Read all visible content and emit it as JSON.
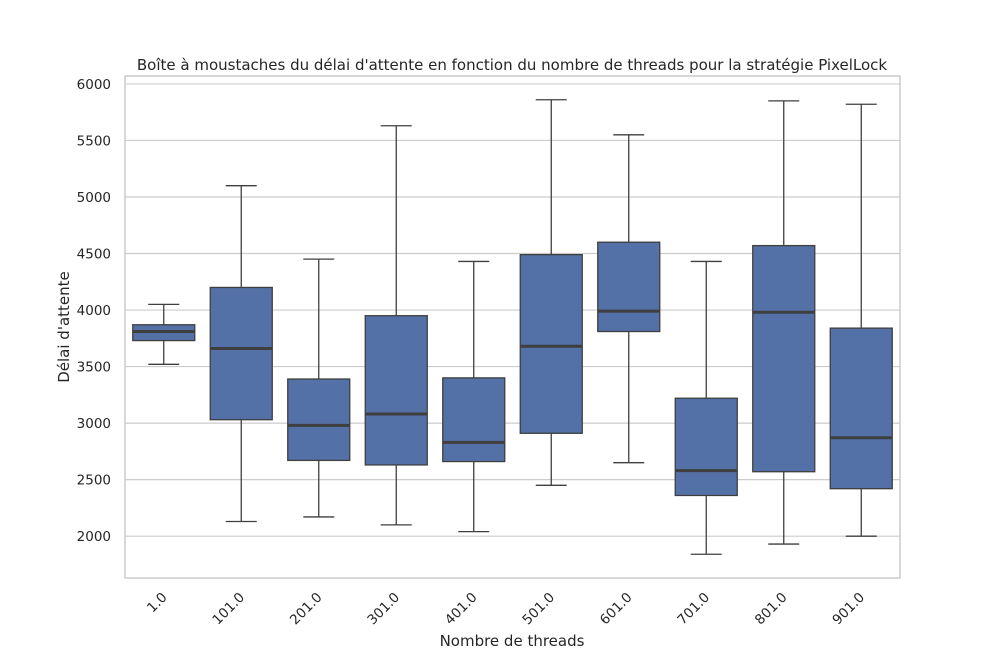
{
  "chart_data": {
    "type": "box",
    "title": "Boîte à moustaches du délai d'attente en fonction du nombre de threads pour la stratégie PixelLock",
    "xlabel": "Nombre de threads",
    "ylabel": "Délai d'attente",
    "ylim": [
      1630,
      6070
    ],
    "yticks": [
      2000,
      2500,
      3000,
      3500,
      4000,
      4500,
      5000,
      5500,
      6000
    ],
    "grid": true,
    "box_color": "#5471a7",
    "line_color": "#3f3f3f",
    "grid_color": "#cccccc",
    "categories": [
      "1.0",
      "101.0",
      "201.0",
      "301.0",
      "401.0",
      "501.0",
      "601.0",
      "701.0",
      "801.0",
      "901.0"
    ],
    "boxes": [
      {
        "min": 3520,
        "q1": 3730,
        "median": 3810,
        "q3": 3870,
        "max": 4050
      },
      {
        "min": 2130,
        "q1": 3030,
        "median": 3660,
        "q3": 4200,
        "max": 5100
      },
      {
        "min": 2170,
        "q1": 2670,
        "median": 2980,
        "q3": 3390,
        "max": 4450
      },
      {
        "min": 2100,
        "q1": 2630,
        "median": 3080,
        "q3": 3950,
        "max": 5630
      },
      {
        "min": 2040,
        "q1": 2660,
        "median": 2830,
        "q3": 3400,
        "max": 4430
      },
      {
        "min": 2450,
        "q1": 2910,
        "median": 3680,
        "q3": 4490,
        "max": 5860
      },
      {
        "min": 2650,
        "q1": 3810,
        "median": 3990,
        "q3": 4600,
        "max": 5550
      },
      {
        "min": 1840,
        "q1": 2360,
        "median": 2580,
        "q3": 3220,
        "max": 4430
      },
      {
        "min": 1930,
        "q1": 2570,
        "median": 3980,
        "q3": 4570,
        "max": 5850
      },
      {
        "min": 2000,
        "q1": 2420,
        "median": 2870,
        "q3": 3840,
        "max": 5820
      }
    ]
  }
}
